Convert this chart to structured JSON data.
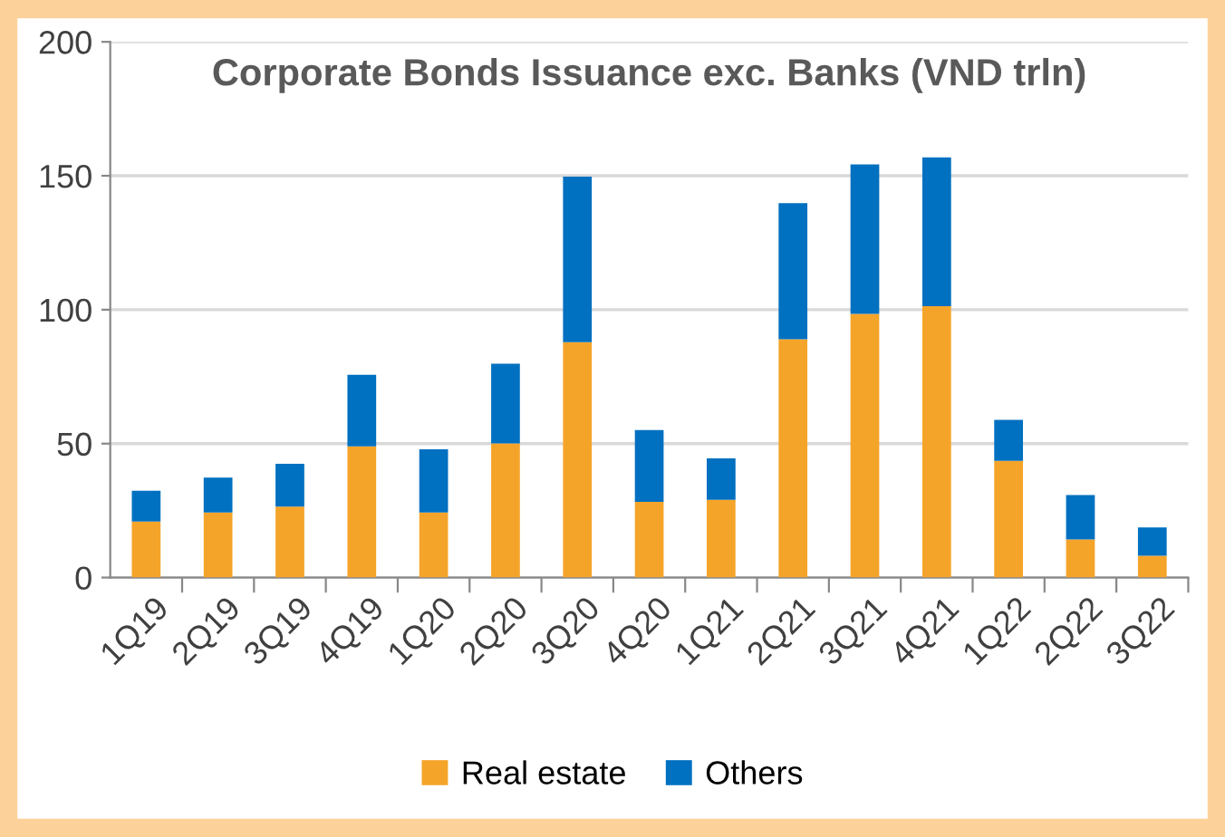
{
  "chart_data": {
    "type": "bar",
    "title": "Corporate Bonds Issuance exc. Banks (VND trln)",
    "categories": [
      "1Q19",
      "2Q19",
      "3Q19",
      "4Q19",
      "1Q20",
      "2Q20",
      "3Q20",
      "4Q20",
      "1Q21",
      "2Q21",
      "3Q21",
      "4Q21",
      "1Q22",
      "2Q22",
      "3Q22"
    ],
    "stacked": true,
    "series": [
      {
        "name": "Real estate",
        "color": "#f5a42a",
        "values": [
          20.9,
          24.3,
          26.5,
          49.0,
          24.3,
          50.1,
          87.9,
          28.3,
          29.0,
          89.0,
          98.4,
          101.3,
          43.6,
          14.2,
          8.1
        ]
      },
      {
        "name": "Others",
        "color": "#0070c0",
        "values": [
          11.5,
          13.0,
          16.0,
          26.7,
          23.6,
          29.7,
          61.8,
          26.8,
          15.5,
          50.8,
          55.8,
          55.6,
          15.3,
          16.6,
          10.6
        ]
      }
    ],
    "ylim": [
      0,
      200
    ],
    "yticks": [
      0,
      50,
      100,
      150,
      200
    ],
    "grid": "y",
    "legend": "bottom"
  }
}
